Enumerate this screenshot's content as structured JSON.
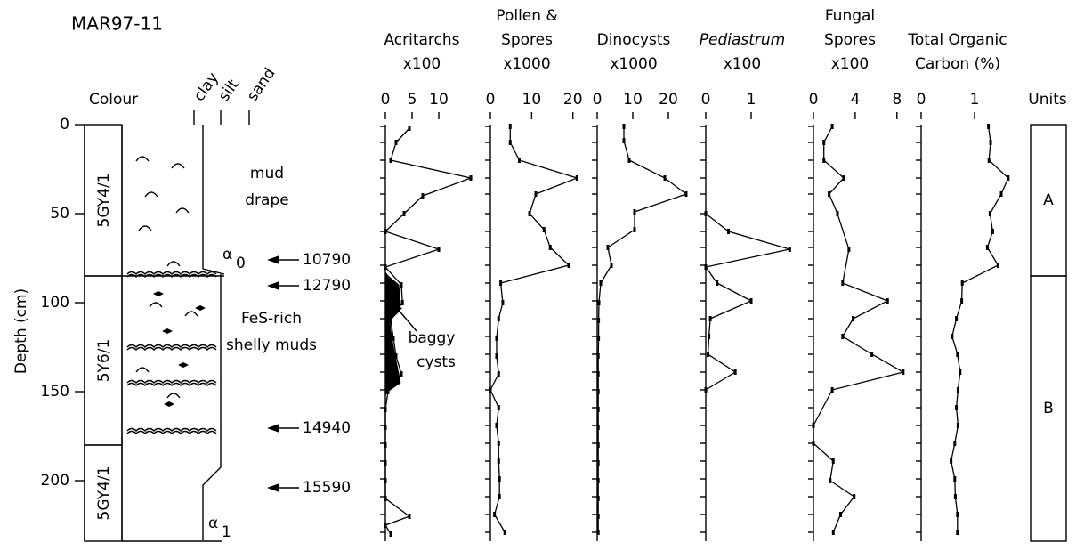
{
  "figure_title": "MAR97-11",
  "depth_axis": {
    "label": "Depth (cm)",
    "ylim": [
      0,
      234
    ],
    "yticks": [
      0,
      50,
      100,
      150,
      200
    ]
  },
  "lithology": {
    "colour_header": "Colour",
    "grain_sizes": [
      "clay",
      "silt",
      "sand"
    ],
    "colour_units": [
      {
        "label": "5GY4/1",
        "top": 0,
        "bottom": 85
      },
      {
        "label": "5Y6/1",
        "top": 85,
        "bottom": 180
      },
      {
        "label": "5GY4/1",
        "top": 180,
        "bottom": 234
      }
    ],
    "boundaries": [
      {
        "symbol": "α",
        "subscript": "0",
        "depth": 85
      },
      {
        "symbol": "α",
        "subscript": "1",
        "depth": 234
      }
    ],
    "annotations": [
      {
        "lines": [
          "mud",
          "drape"
        ]
      },
      {
        "lines": [
          "FeS-rich",
          "shelly  muds"
        ]
      }
    ]
  },
  "ages": [
    {
      "age": 10790,
      "depth": 76
    },
    {
      "age": 12790,
      "depth": 90.5
    },
    {
      "age": 14940,
      "depth": 170.5
    },
    {
      "age": 15590,
      "depth": 204
    }
  ],
  "chart_data": [
    {
      "type": "line",
      "title": [
        "Acritarchs",
        "x100"
      ],
      "xlim": [
        0,
        17
      ],
      "xticks": [
        0,
        5,
        10
      ],
      "annotation": [
        "baggy",
        "cysts"
      ],
      "series": [
        {
          "color": "#000000",
          "depth": [
            2,
            10,
            20,
            30,
            40,
            50,
            60,
            70,
            80,
            90,
            100,
            110,
            120,
            130,
            140,
            150,
            160,
            170,
            180,
            190,
            200,
            210,
            220,
            225,
            230
          ],
          "values": [
            4.5,
            2,
            1,
            16,
            7,
            3.5,
            0,
            10,
            0,
            3,
            3.2,
            1,
            1.5,
            2,
            3,
            0.5,
            0,
            0,
            0,
            0,
            0,
            0,
            4.5,
            0,
            1
          ]
        },
        {
          "color": "#000000",
          "fill": true,
          "depth": [
            83,
            85,
            90,
            100,
            105,
            110,
            120,
            130,
            140,
            145,
            150,
            152
          ],
          "values": [
            0,
            0.5,
            2.5,
            2.8,
            2.5,
            0.8,
            1.2,
            1.8,
            2.5,
            2.8,
            0.4,
            0
          ]
        }
      ]
    },
    {
      "type": "line",
      "title": [
        "Pollen &",
        "Spores",
        "x1000"
      ],
      "xlim": [
        0,
        22
      ],
      "xticks": [
        0,
        10,
        20
      ],
      "series": [
        {
          "color": "#000000",
          "depth": [
            1,
            10,
            20,
            30,
            39,
            50,
            59,
            69,
            79,
            89,
            100,
            109,
            120,
            130,
            140,
            149,
            159,
            169,
            179,
            189,
            199,
            209,
            219,
            229
          ],
          "values": [
            4.8,
            4.8,
            7,
            21,
            11,
            9.5,
            13,
            14.5,
            19,
            2.5,
            3,
            2,
            1.5,
            1.5,
            2,
            0,
            2,
            1.5,
            2,
            2,
            2.2,
            2.2,
            1,
            3.5
          ]
        }
      ]
    },
    {
      "type": "line",
      "title": [
        "Dinocysts",
        "x1000"
      ],
      "xlim": [
        0,
        25.5
      ],
      "xticks": [
        0,
        10,
        20
      ],
      "series": [
        {
          "color": "#000000",
          "depth": [
            1,
            9,
            20,
            30,
            39,
            49,
            59,
            69,
            79,
            89,
            100,
            110,
            120,
            130,
            140,
            150,
            160,
            170,
            180,
            190,
            200,
            210,
            220,
            229
          ],
          "values": [
            7.5,
            7.5,
            9,
            19,
            25,
            10.5,
            10.5,
            3,
            4,
            1,
            0.5,
            0.4,
            0.4,
            0.3,
            0.3,
            0.3,
            0.3,
            0.3,
            0.3,
            0.3,
            0.3,
            0.3,
            0.3,
            0.3
          ]
        }
      ]
    },
    {
      "type": "line",
      "title": [
        "Pediastrum",
        "x100"
      ],
      "title_style": "italic",
      "xlim": [
        0,
        2
      ],
      "xticks": [
        0,
        1
      ],
      "series": [
        {
          "color": "#000000",
          "depth": [
            50,
            60,
            70,
            80,
            89,
            99,
            109,
            119,
            129,
            139,
            149
          ],
          "values": [
            0,
            0.5,
            1.85,
            0,
            0.25,
            1,
            0.1,
            0.07,
            0.05,
            0.65,
            0
          ]
        }
      ]
    },
    {
      "type": "line",
      "title": [
        "Fungal",
        "Spores",
        "x100"
      ],
      "xlim": [
        0,
        8.7
      ],
      "xticks": [
        0,
        4,
        8
      ],
      "series": [
        {
          "color": "#000000",
          "depth": [
            1,
            10,
            20,
            30,
            39,
            50,
            70,
            89,
            99,
            109,
            119,
            129,
            139,
            149,
            169,
            179,
            189,
            200,
            209,
            219,
            229
          ],
          "values": [
            1.8,
            1,
            1,
            2.9,
            1.5,
            2.3,
            3.4,
            2.8,
            7.1,
            3.8,
            2.8,
            5.6,
            8.6,
            1.8,
            0,
            0,
            1.9,
            1.6,
            3.9,
            2.6,
            1.9
          ]
        }
      ]
    },
    {
      "type": "line",
      "title": [
        "Total Organic",
        "Carbon (%)"
      ],
      "xlim": [
        0,
        1.7
      ],
      "xticks": [
        0,
        1
      ],
      "series": [
        {
          "color": "#000000",
          "depth": [
            1,
            10,
            20,
            30,
            39,
            50,
            60,
            69,
            79,
            89,
            99,
            109,
            119,
            129,
            139,
            149,
            159,
            169,
            179,
            189,
            199,
            209,
            219,
            229
          ],
          "values": [
            1.26,
            1.3,
            1.27,
            1.63,
            1.5,
            1.29,
            1.34,
            1.24,
            1.44,
            0.77,
            0.76,
            0.66,
            0.58,
            0.68,
            0.73,
            0.69,
            0.66,
            0.69,
            0.63,
            0.56,
            0.63,
            0.64,
            0.68,
            0.68
          ]
        }
      ]
    }
  ],
  "units": {
    "header": "Units",
    "units": [
      {
        "label": "A",
        "top": 0,
        "bottom": 85
      },
      {
        "label": "B",
        "top": 85,
        "bottom": 234
      }
    ]
  }
}
